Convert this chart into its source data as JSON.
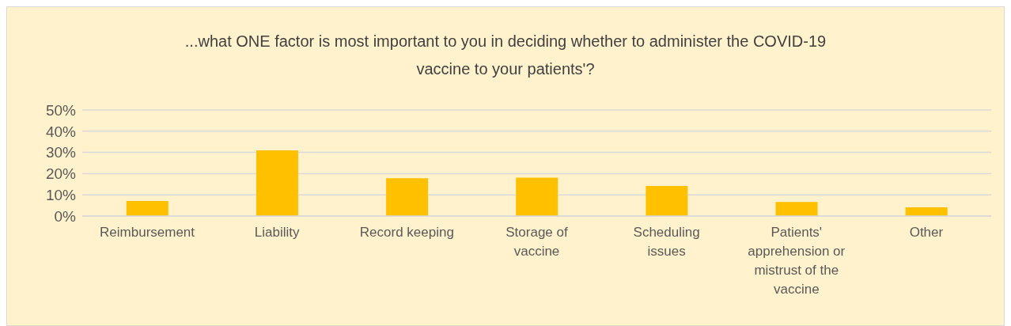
{
  "chart_data": {
    "type": "bar",
    "title": "...what ONE factor is most important to you in deciding whether to administer the COVID-19 vaccine to your patients'?",
    "categories": [
      "Reimbursement",
      "Liability",
      "Record keeping",
      "Storage of vaccine",
      "Scheduling issues",
      "Patients' apprehension or mistrust of the vaccine",
      "Other"
    ],
    "values": [
      7.1,
      31.0,
      17.8,
      18.1,
      14.2,
      6.6,
      4.1
    ],
    "color": "#ffc000",
    "ylim": [
      0,
      50
    ],
    "yticks": [
      {
        "value": 0,
        "label": "0%"
      },
      {
        "value": 10,
        "label": "10%"
      },
      {
        "value": 20,
        "label": "20%"
      },
      {
        "value": 30,
        "label": "30%"
      },
      {
        "value": 40,
        "label": "40%"
      },
      {
        "value": 50,
        "label": "50%"
      }
    ],
    "grid": "y"
  }
}
